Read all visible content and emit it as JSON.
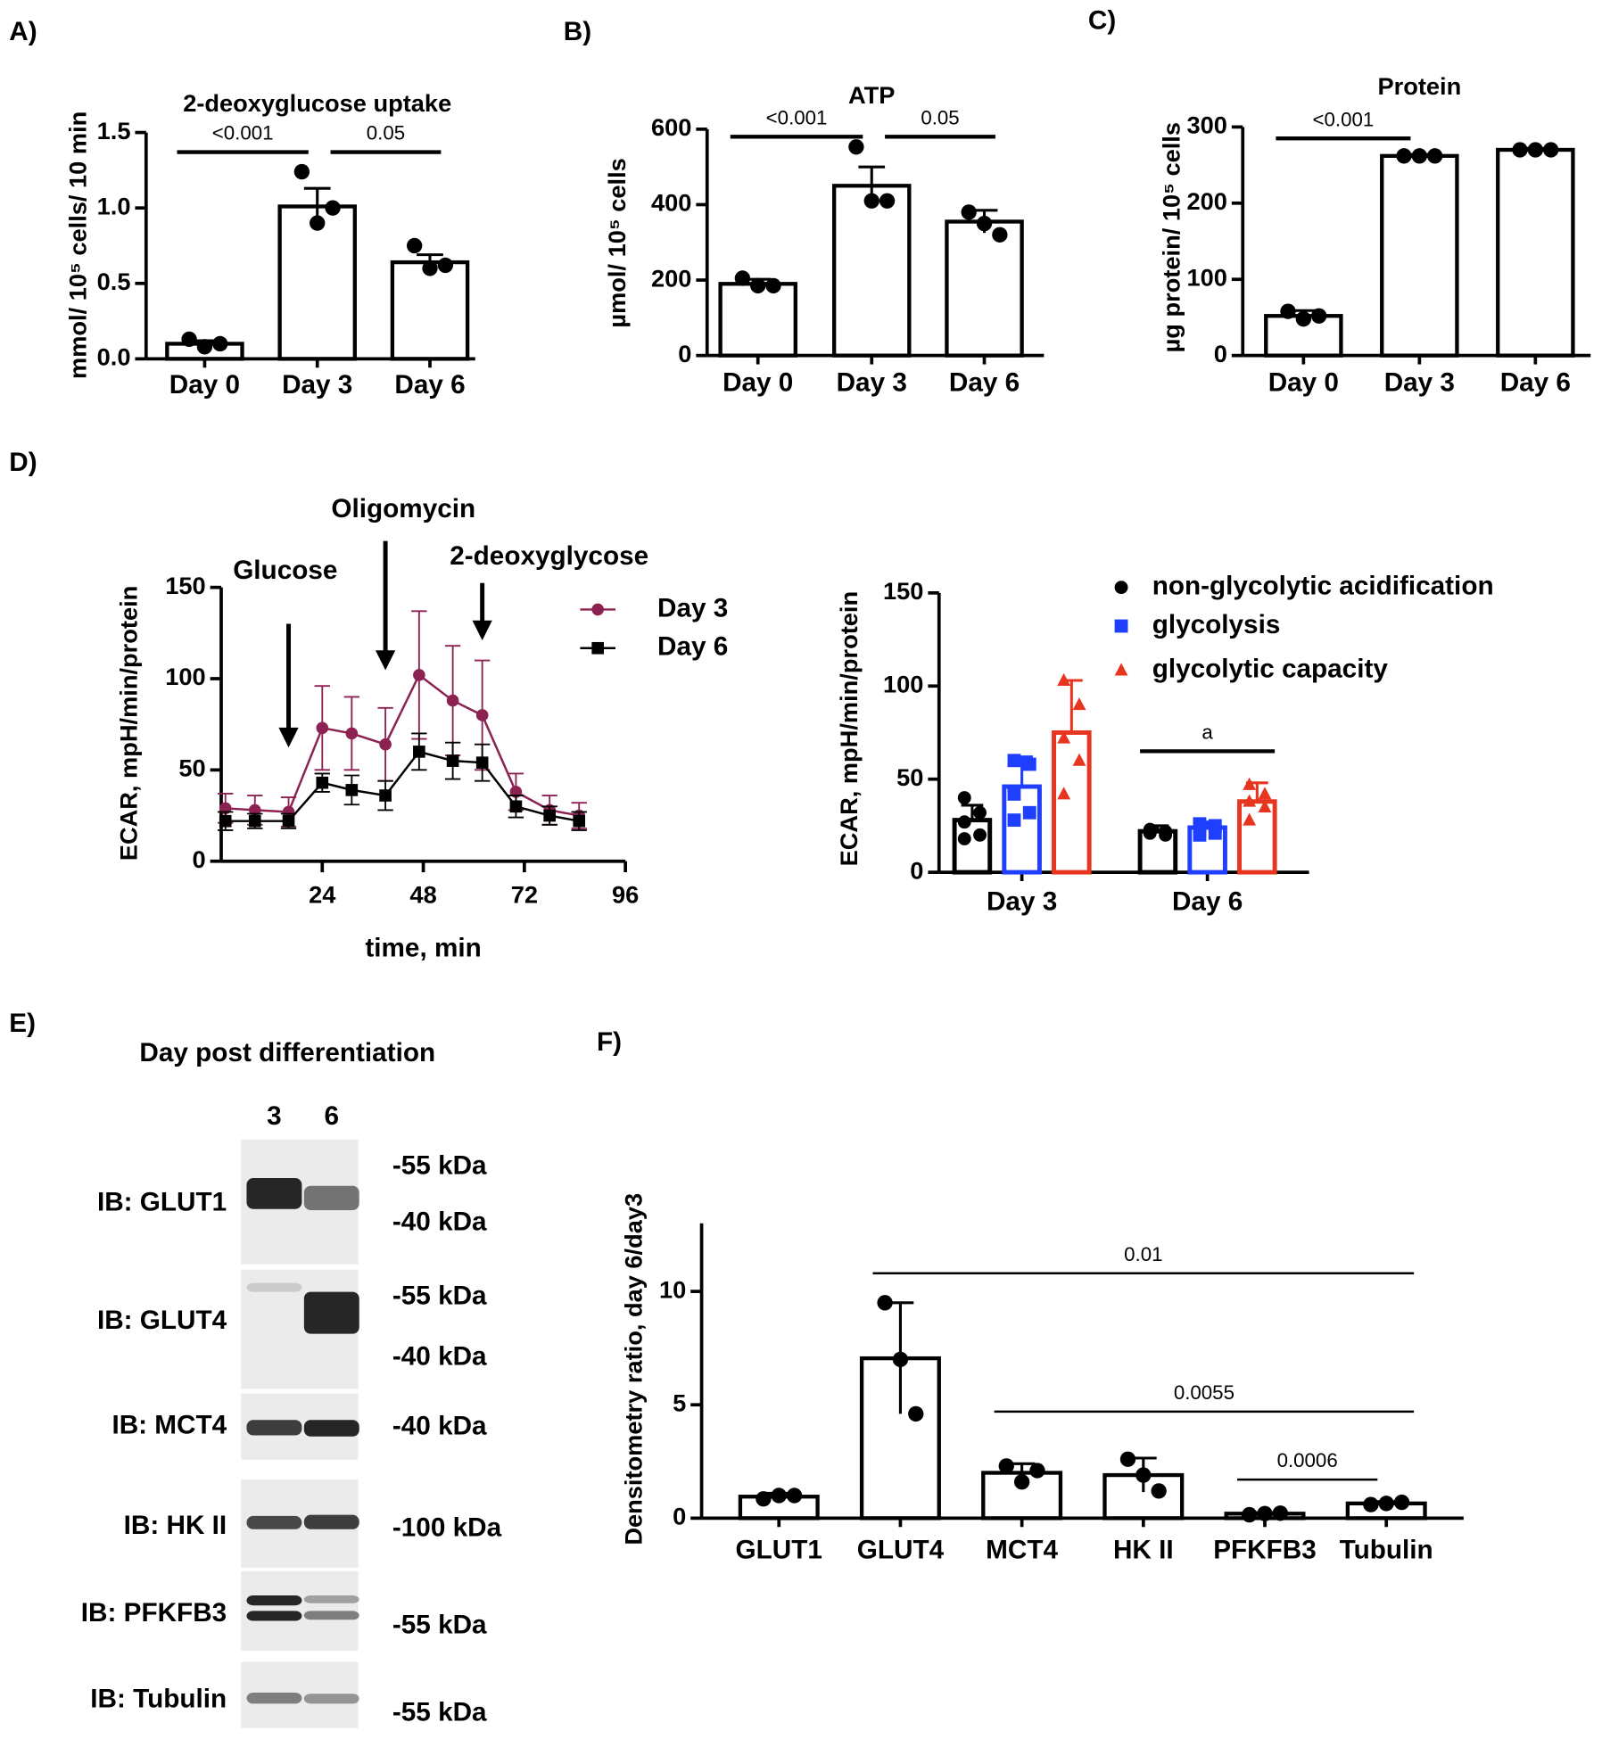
{
  "chart_data": [
    {
      "panel": "A)",
      "type": "bar",
      "title": "2-deoxyglucose uptake",
      "y_label": "mmol/ 10⁵ cells/ 10 min",
      "categories": [
        "Day 0",
        "Day 3",
        "Day 6"
      ],
      "values": [
        0.1,
        1.01,
        0.64
      ],
      "errors": [
        0.02,
        0.12,
        0.05
      ],
      "points": [
        [
          0.13,
          0.08,
          0.1
        ],
        [
          1.24,
          0.9,
          1.0
        ],
        [
          0.75,
          0.6,
          0.62
        ]
      ],
      "color": "#000000",
      "ylim": [
        0,
        1.5
      ],
      "yticks": [
        {
          "value": 0,
          "label": "0.0"
        },
        {
          "value": 0.5,
          "label": "0.5"
        },
        {
          "value": 1,
          "label": "1.0"
        },
        {
          "value": 1.5,
          "label": "1.5"
        }
      ],
      "brackets": [
        {
          "label": "<0.001",
          "x": [
            0,
            1
          ],
          "y": 1.37
        },
        {
          "label": "0.05",
          "x": [
            1,
            2
          ],
          "y": 1.37
        }
      ]
    },
    {
      "panel": "B)",
      "type": "bar",
      "title": "ATP",
      "y_label": "µmol/ 10⁵ cells",
      "categories": [
        "Day 0",
        "Day 3",
        "Day 6"
      ],
      "values": [
        190,
        450,
        355
      ],
      "errors": [
        12,
        50,
        30
      ],
      "points": [
        [
          205,
          185,
          185
        ],
        [
          553,
          410,
          410
        ],
        [
          380,
          350,
          320
        ]
      ],
      "color": "#000000",
      "ylim": [
        0,
        600
      ],
      "yticks": [
        0,
        200,
        400,
        600
      ],
      "brackets": [
        {
          "label": "<0.001",
          "x": [
            0,
            1
          ],
          "y": 580
        },
        {
          "label": "0.05",
          "x": [
            1,
            2
          ],
          "y": 580
        }
      ]
    },
    {
      "panel": "C)",
      "type": "bar",
      "title": "Protein",
      "y_label": "µg protein/ 10⁵ cells",
      "categories": [
        "Day 0",
        "Day 3",
        "Day 6"
      ],
      "values": [
        52,
        262,
        270
      ],
      "errors": [
        7,
        2,
        2
      ],
      "points": [
        [
          58,
          48,
          52
        ],
        [
          262,
          262,
          262
        ],
        [
          270,
          270,
          270
        ]
      ],
      "color": "#000000",
      "ylim": [
        0,
        300
      ],
      "yticks": [
        0,
        100,
        200,
        300
      ],
      "brackets": [
        {
          "label": "<0.001",
          "x": [
            0,
            1
          ],
          "y": 285
        }
      ]
    },
    {
      "panel": "D)",
      "type": "line",
      "x_label": "time, min",
      "y_label": "ECAR, mpH/min/protein",
      "x": [
        1,
        8,
        16,
        24,
        31,
        39,
        47,
        55,
        62,
        70,
        78,
        85
      ],
      "series": [
        {
          "name": "Day 3",
          "color": "#8b2252",
          "marker": "circle",
          "values": [
            29,
            28,
            27,
            73,
            70,
            64,
            102,
            88,
            80,
            38,
            28,
            25
          ],
          "errors": [
            8,
            8,
            8,
            23,
            20,
            20,
            35,
            30,
            30,
            10,
            8,
            7
          ]
        },
        {
          "name": "Day 6",
          "color": "#000000",
          "marker": "square",
          "values": [
            22,
            22,
            22,
            43,
            39,
            36,
            60,
            55,
            54,
            30,
            25,
            22
          ],
          "errors": [
            5,
            4,
            4,
            5,
            8,
            8,
            10,
            10,
            10,
            6,
            5,
            5
          ]
        }
      ],
      "xlim": [
        0,
        96
      ],
      "xticks": [
        24,
        48,
        72,
        96
      ],
      "ylim": [
        0,
        150
      ],
      "yticks": [
        0,
        50,
        100,
        150
      ],
      "annotations": [
        {
          "label": "Glucose",
          "x": 16
        },
        {
          "label": "Oligomycin",
          "x": 39
        },
        {
          "label": "2-deoxyglycose",
          "x": 62
        }
      ]
    },
    {
      "type": "bar",
      "y_label": "ECAR, mpH/min/protein",
      "categories": [
        "Day 3",
        "Day 6"
      ],
      "series": [
        {
          "name": "non-glycolytic acidification",
          "color": "#000000",
          "marker": "circle",
          "values": [
            28,
            22
          ],
          "errors": [
            8,
            3
          ],
          "points": [
            [
              40,
              32,
              27,
              20,
              18
            ],
            [
              23,
              22,
              21,
              20,
              21
            ]
          ]
        },
        {
          "name": "glycolysis",
          "color": "#1f3fff",
          "marker": "square",
          "values": [
            46,
            24
          ],
          "errors": [
            16,
            3
          ],
          "points": [
            [
              60,
              58,
              42,
              32,
              28
            ],
            [
              26,
              25,
              23,
              21,
              20
            ]
          ]
        },
        {
          "name": "glycolytic capacity",
          "color": "#e8351f",
          "marker": "triangle",
          "values": [
            75,
            38
          ],
          "errors": [
            28,
            10
          ],
          "points": [
            [
              103,
              90,
              72,
              60,
              42
            ],
            [
              47,
              42,
              38,
              35,
              28
            ]
          ]
        }
      ],
      "ylim": [
        0,
        150
      ],
      "yticks": [
        0,
        50,
        100,
        150
      ],
      "brackets": [
        {
          "label": "a",
          "x": [
            1
          ],
          "y": 65
        }
      ]
    },
    {
      "panel": "F)",
      "type": "bar",
      "y_label": "Densitometry ratio, day 6/day3",
      "categories": [
        "GLUT1",
        "GLUT4",
        "MCT4",
        "HK II",
        "PFKFB3",
        "Tubulin"
      ],
      "values": [
        0.95,
        7.05,
        2.0,
        1.9,
        0.2,
        0.65
      ],
      "errors": [
        0.15,
        2.45,
        0.4,
        0.75,
        0.05,
        0.08
      ],
      "points": [
        [
          0.85,
          1.0,
          1.0
        ],
        [
          9.5,
          7.0,
          4.6
        ],
        [
          2.3,
          1.6,
          2.1
        ],
        [
          2.6,
          1.9,
          1.2
        ],
        [
          0.15,
          0.2,
          0.22
        ],
        [
          0.6,
          0.65,
          0.7
        ]
      ],
      "color": "#000000",
      "ylim": [
        0,
        13
      ],
      "yticks": [
        0,
        5,
        10
      ],
      "brackets": [
        {
          "label": "0.01",
          "x": [
            1,
            5
          ],
          "y": 10.8
        },
        {
          "label": "0.0055",
          "x": [
            2,
            5
          ],
          "y": 4.7
        },
        {
          "label": "0.0006",
          "x": [
            4,
            5
          ],
          "y": 1.7
        }
      ]
    }
  ],
  "blot": {
    "panel": "E)",
    "title": "Day post differentiation",
    "lanes": [
      "3",
      "6"
    ],
    "rows": [
      {
        "label": "IB:  GLUT1",
        "markers": [
          "-55 kDa",
          "-40 kDa"
        ]
      },
      {
        "label": "IB:  GLUT4",
        "markers": [
          "-55 kDa",
          "-40 kDa"
        ]
      },
      {
        "label": "IB:  MCT4",
        "markers": [
          "-40 kDa"
        ]
      },
      {
        "label": "IB:  HK II",
        "markers": [
          "-100 kDa"
        ]
      },
      {
        "label": "IB:  PFKFB3",
        "markers": [
          "-55 kDa"
        ]
      },
      {
        "label": "IB:  Tubulin",
        "markers": [
          "-55 kDa"
        ]
      }
    ]
  }
}
